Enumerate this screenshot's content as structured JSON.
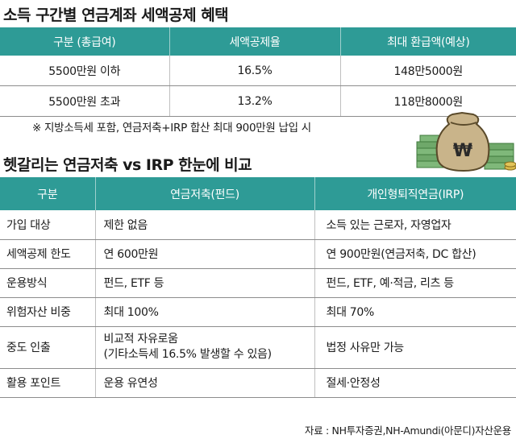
{
  "title_top": "소득 구간별 연금계좌 세액공제 혜택",
  "table1": {
    "headers": [
      "구분 (총급여)",
      "세액공제율",
      "최대 환급액(예상)"
    ],
    "rows": [
      [
        "5500만원 이하",
        "16.5%",
        "148만5000원"
      ],
      [
        "5500만원 초과",
        "13.2%",
        "118만8000원"
      ]
    ]
  },
  "note": "※ 지방소득세 포함, 연금저축+IRP 합산 최대 900만원 납입 시",
  "title_bottom": "헷갈리는 연금저축 vs IRP 한눈에 비교",
  "table2": {
    "headers": [
      "구분",
      "연금저축(펀드)",
      "개인형퇴직연금(IRP)"
    ],
    "rows": [
      {
        "label": "가입 대상",
        "a": [
          "제한 없음"
        ],
        "b": [
          "소득 있는 근로자, 자영업자"
        ]
      },
      {
        "label": "세액공제 한도",
        "a": [
          "연 600만원"
        ],
        "b": [
          "연 900만원(연금저축, DC 합산)"
        ]
      },
      {
        "label": "운용방식",
        "a": [
          "펀드, ETF 등"
        ],
        "b": [
          "펀드, ETF, 예·적금, 리츠 등"
        ]
      },
      {
        "label": "위험자산 비중",
        "a": [
          "최대 100%"
        ],
        "b": [
          "최대 70%"
        ]
      },
      {
        "label": "중도 인출",
        "a": [
          "비교적 자유로움",
          "(기타소득세 16.5% 발생할 수 있음)"
        ],
        "b": [
          "법정 사유만 가능"
        ]
      },
      {
        "label": "활용 포인트",
        "a": [
          "운용 유연성"
        ],
        "b": [
          "절세·안정성"
        ]
      }
    ]
  },
  "source": "자료 : NH투자증권,NH-Amundi(아문디)자산운용",
  "illustration": {
    "bag_symbol": "₩"
  },
  "colors": {
    "header_teal": "#2e9b96",
    "money_green": "#6fa86a",
    "bag_beige": "#c9b48a"
  }
}
